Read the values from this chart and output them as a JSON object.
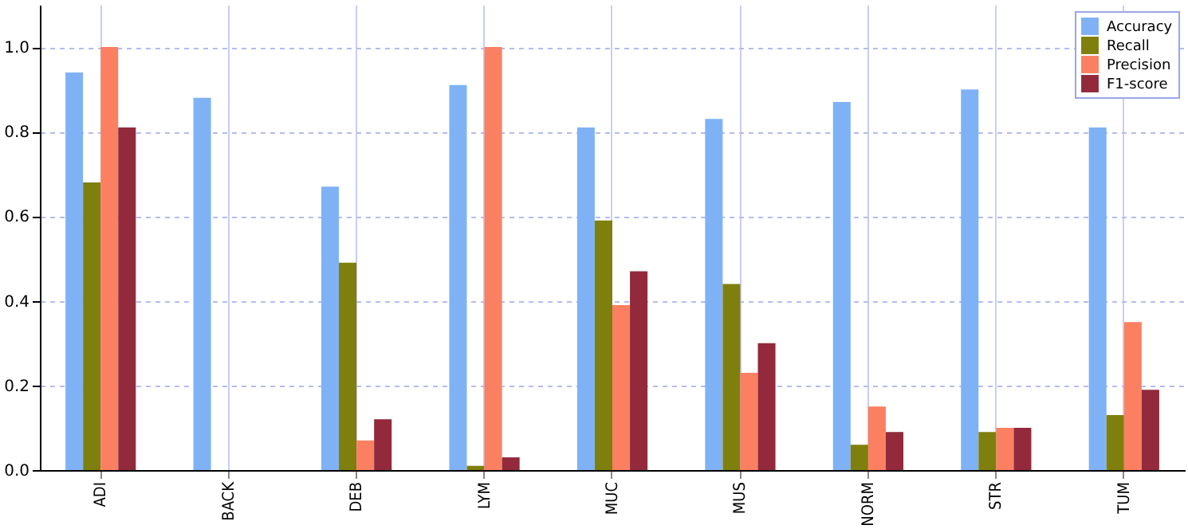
{
  "chart_data": {
    "type": "bar",
    "categories": [
      "ADI",
      "BACK",
      "DEB",
      "LYM",
      "MUC",
      "MUS",
      "NORM",
      "STR",
      "TUM"
    ],
    "series": [
      {
        "name": "Accuracy",
        "color": "#7fb2f5",
        "values": [
          0.94,
          0.88,
          0.67,
          0.91,
          0.81,
          0.83,
          0.87,
          0.9,
          0.81
        ]
      },
      {
        "name": "Recall",
        "color": "#7f7f0d",
        "values": [
          0.68,
          0,
          0.49,
          0.01,
          0.59,
          0.44,
          0.06,
          0.09,
          0.13
        ]
      },
      {
        "name": "Precision",
        "color": "#fb8062",
        "values": [
          1.0,
          0,
          0.07,
          1.0,
          0.39,
          0.23,
          0.15,
          0.1,
          0.35
        ]
      },
      {
        "name": "F1-score",
        "color": "#922a3c",
        "values": [
          0.81,
          0,
          0.12,
          0.03,
          0.47,
          0.3,
          0.09,
          0.1,
          0.19
        ]
      }
    ],
    "ylim": [
      0,
      1.1
    ],
    "yticks": [
      {
        "value": 0,
        "label": "0.0"
      },
      0.2,
      0.4,
      0.6,
      0.8,
      {
        "value": 1,
        "label": "1.0"
      }
    ],
    "grid": true,
    "legend": "top right"
  }
}
